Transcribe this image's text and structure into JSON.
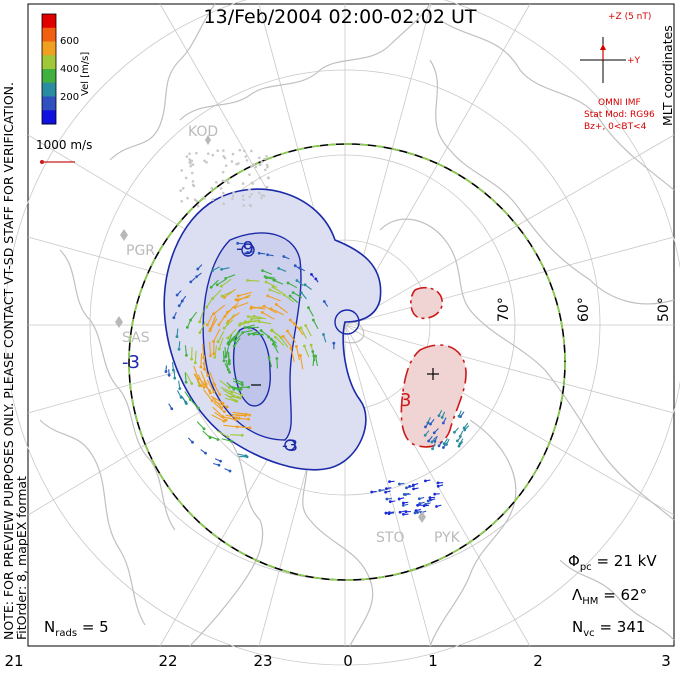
{
  "title": "13/Feb/2004 02:00-02:02 UT",
  "disclaimer": "NOTE: FOR PREVIEW PURPOSES ONLY. PLEASE CONTACT VT-SD STAFF FOR VERIFICATION.",
  "fit_info": "FitOrder: 8, mapEX format",
  "coordinates_label": "MLT coordinates",
  "colorbar": {
    "label": "Vel [m/s]",
    "ticks": [
      "600",
      "400",
      "200"
    ],
    "colors": [
      "#e00000",
      "#f06010",
      "#f0a020",
      "#a0c838",
      "#40b040",
      "#2a8ca0",
      "#3050c0",
      "#1010e0"
    ]
  },
  "scale_vector": "1000 m/s",
  "imf": {
    "z_label": "+Z (5 nT)",
    "y_label": "+Y",
    "source": "OMNI IMF",
    "model": "Stat Mod: RG96",
    "condition": "Bz+, 0<BT<4"
  },
  "latitude_labels": [
    "70°",
    "60°",
    "50°"
  ],
  "mlt_ticks": [
    "21",
    "22",
    "23",
    "0",
    "1",
    "2",
    "3"
  ],
  "stats": {
    "phi_pc": "= 21 kV",
    "lambda_hm": "= 62°",
    "n_vc": "= 341",
    "n_rads": "= 5"
  },
  "radars": [
    "KOD",
    "PGR",
    "SAS",
    "STO",
    "PYK"
  ],
  "contour_labels": [
    "-9",
    "-3",
    "-3",
    "3"
  ],
  "colors": {
    "negative_contour": "#1a2aa8",
    "positive_contour": "#cc1a1a",
    "negative_fill": "#dcdff2",
    "positive_fill": "#f0d4d4",
    "coastline": "#c0c0c0",
    "grid": "#c8c8c8",
    "heppner_maynard_dash": "#8ad04a"
  }
}
